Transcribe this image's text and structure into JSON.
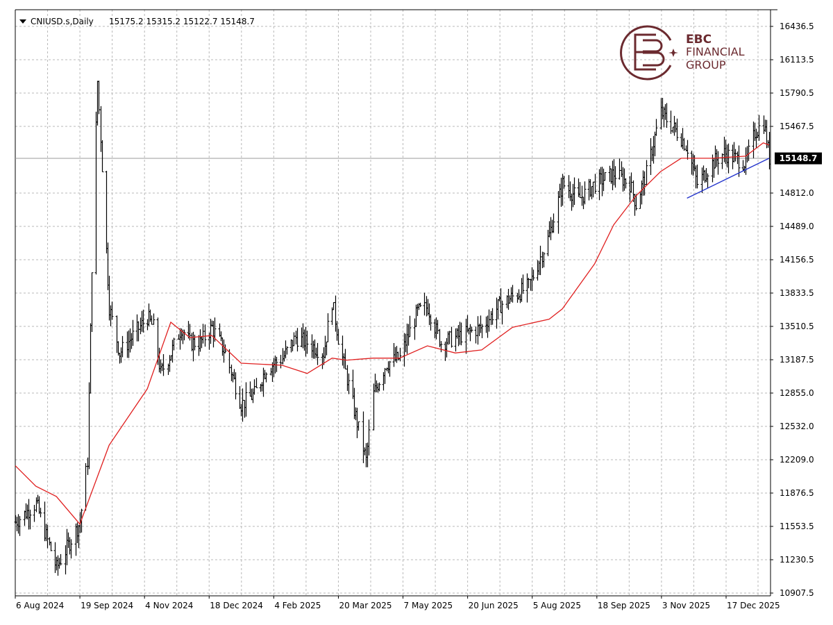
{
  "header": {
    "symbol": "CNIUSD.s,Daily",
    "ohlc": "15175.2 15315.2 15122.7 15148.7"
  },
  "logo": {
    "line1": "EBC",
    "line2": "FINANCIAL",
    "line3": "GROUP",
    "color": "#6b2a2f"
  },
  "price_tag": "15148.7",
  "chart_data": {
    "type": "line",
    "symbol": "CNIUSD.s",
    "timeframe": "Daily",
    "chart_style": "ohlc-bars",
    "ylim": [
      10907.5,
      16436.5
    ],
    "y_ticks": [
      "16436.5",
      "16113.5",
      "15790.5",
      "15467.5",
      "15148.7",
      "14812.0",
      "14489.0",
      "14156.5",
      "13833.5",
      "13510.5",
      "13187.5",
      "12855.0",
      "12532.0",
      "12209.0",
      "11876.5",
      "11553.5",
      "11230.5",
      "10907.5"
    ],
    "x_ticks": [
      "6 Aug 2024",
      "19 Sep 2024",
      "4 Nov 2024",
      "18 Dec 2024",
      "4 Feb 2025",
      "20 Mar 2025",
      "7 May 2025",
      "20 Jun 2025",
      "5 Aug 2025",
      "18 Sep 2025",
      "3 Nov 2025",
      "17 Dec 2025"
    ],
    "last_price": 15148.7,
    "grid": true,
    "series": [
      {
        "name": "price",
        "color": "#000000",
        "x": [
          "2024-08-06",
          "2024-08-20",
          "2024-09-03",
          "2024-09-19",
          "2024-09-24",
          "2024-09-27",
          "2024-10-01",
          "2024-10-09",
          "2024-10-16",
          "2024-10-23",
          "2024-11-04",
          "2024-11-08",
          "2024-11-13",
          "2024-11-20",
          "2024-11-27",
          "2024-12-03",
          "2024-12-10",
          "2024-12-18",
          "2024-12-27",
          "2025-01-07",
          "2025-01-16",
          "2025-01-24",
          "2025-02-04",
          "2025-02-13",
          "2025-02-21",
          "2025-03-04",
          "2025-03-10",
          "2025-03-14",
          "2025-03-20",
          "2025-04-02",
          "2025-04-07",
          "2025-04-16",
          "2025-04-25",
          "2025-05-07",
          "2025-05-14",
          "2025-05-23",
          "2025-06-02",
          "2025-06-20",
          "2025-07-01",
          "2025-07-11",
          "2025-07-22",
          "2025-08-05",
          "2025-08-14",
          "2025-08-25",
          "2025-09-05",
          "2025-09-18",
          "2025-09-29",
          "2025-10-03",
          "2025-10-10",
          "2025-10-20",
          "2025-11-03",
          "2025-11-07",
          "2025-11-14",
          "2025-11-24",
          "2025-12-02",
          "2025-12-17",
          "2025-12-23",
          "2025-12-29",
          "2026-01-02"
        ],
        "values": [
          11600,
          11780,
          11150,
          11600,
          12200,
          14100,
          15900,
          13700,
          13250,
          13380,
          13600,
          13500,
          13050,
          13250,
          13500,
          13350,
          13350,
          13500,
          13250,
          12750,
          12850,
          13100,
          13200,
          13400,
          13350,
          13250,
          13750,
          13400,
          13000,
          12200,
          12850,
          13150,
          13200,
          13650,
          13700,
          13350,
          13400,
          13500,
          13700,
          13800,
          13900,
          14400,
          14900,
          14750,
          14900,
          15000,
          14900,
          14700,
          15000,
          15600,
          15350,
          15250,
          14900,
          15100,
          15200,
          15100,
          15400,
          15500,
          15148.7
        ]
      },
      {
        "name": "moving-average",
        "color": "#e02020",
        "x": [
          "2024-08-06",
          "2024-08-20",
          "2024-09-03",
          "2024-09-19",
          "2024-10-09",
          "2024-11-04",
          "2024-11-20",
          "2024-12-03",
          "2024-12-18",
          "2025-01-07",
          "2025-02-04",
          "2025-02-21",
          "2025-03-10",
          "2025-03-20",
          "2025-04-07",
          "2025-04-25",
          "2025-05-14",
          "2025-06-02",
          "2025-06-20",
          "2025-07-11",
          "2025-08-05",
          "2025-08-14",
          "2025-09-05",
          "2025-09-18",
          "2025-10-03",
          "2025-10-20",
          "2025-11-03",
          "2025-11-24",
          "2025-12-17",
          "2025-12-29",
          "2026-01-02"
        ],
        "values": [
          12150,
          11950,
          11850,
          11580,
          12350,
          12900,
          13550,
          13400,
          13420,
          13150,
          13130,
          13050,
          13200,
          13180,
          13200,
          13200,
          13320,
          13250,
          13280,
          13500,
          13580,
          13680,
          14120,
          14500,
          14780,
          15020,
          15150,
          15150,
          15170,
          15300,
          15280
        ]
      },
      {
        "name": "trendline",
        "color": "#2233cc",
        "x": [
          "2025-11-07",
          "2026-01-02"
        ],
        "values": [
          14760,
          15150
        ]
      }
    ]
  }
}
